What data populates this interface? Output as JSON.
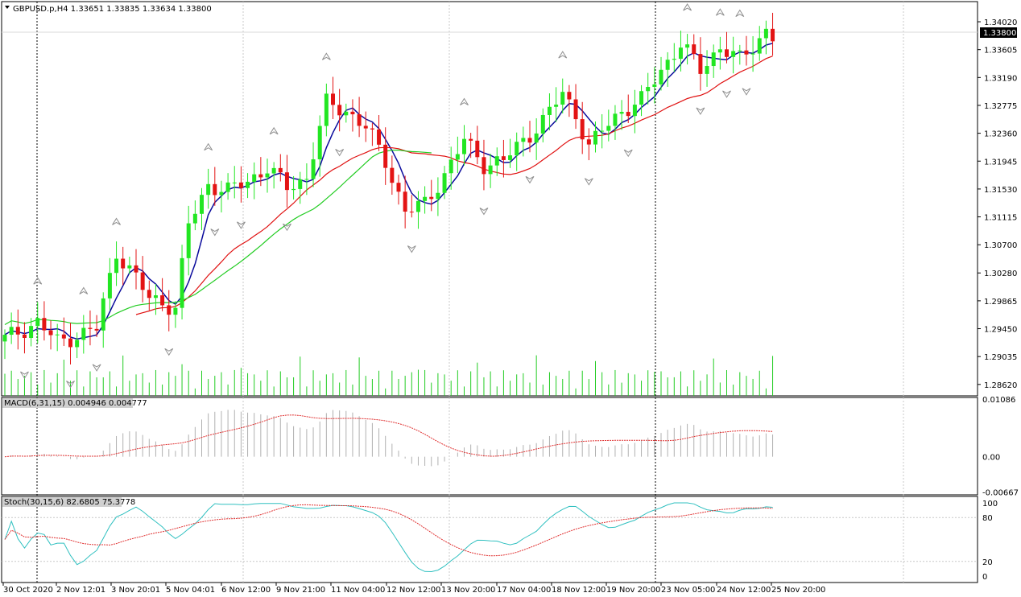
{
  "header": {
    "symbol_line": "GBPUSD.p,H4  1.33651 1.33835 1.33634 1.33800"
  },
  "colors": {
    "bull": "#22e622",
    "bear": "#e31414",
    "ma_fast": "#0a0a9c",
    "ma_slow": "#e01010",
    "ma_green": "#22cc22",
    "volume": "#22cc22",
    "macd_hist": "#b0b0b0",
    "macd_signal": "#e03030",
    "stoch_main": "#30c0c0",
    "stoch_signal": "#e03030",
    "fractal": "#909090",
    "grid": "#c8c8c8"
  },
  "price_panel": {
    "current_price": "1.33800",
    "price_min": 1.2845,
    "price_max": 1.3432,
    "y_labels": [
      "1.34020",
      "1.33605",
      "1.33190",
      "1.32775",
      "1.32360",
      "1.31945",
      "1.31530",
      "1.31115",
      "1.30700",
      "1.30280",
      "1.29865",
      "1.29450",
      "1.29035",
      "1.28620"
    ]
  },
  "macd_panel": {
    "label": "MACD(6,31,15) 0.004946 0.004777",
    "y_labels": [
      "0.01086",
      "0.00",
      "-0.00667"
    ],
    "min": -0.0072,
    "max": 0.0112
  },
  "stoch_panel": {
    "label": "Stoch(30,15,6) 82.6805 75.3778",
    "y_labels": [
      "100",
      "80",
      "20",
      "0"
    ]
  },
  "time_axis": {
    "labels": [
      "30 Oct 2020",
      "2 Nov 12:01",
      "3 Nov 20:01",
      "5 Nov 04:01",
      "6 Nov 12:00",
      "9 Nov 21:00",
      "11 Nov 04:00",
      "12 Nov 12:00",
      "13 Nov 20:00",
      "17 Nov 04:00",
      "18 Nov 12:00",
      "19 Nov 20:00",
      "23 Nov 05:00",
      "24 Nov 12:00",
      "25 Nov 20:00"
    ]
  },
  "chart_data": {
    "type": "candlestick",
    "title": "GBPUSD.p,H4",
    "ylim": [
      1.2845,
      1.3432
    ],
    "waypoints": [
      [
        0,
        1.293
      ],
      [
        5,
        1.2955
      ],
      [
        8,
        1.2925
      ],
      [
        11,
        1.2935
      ],
      [
        14,
        1.2945
      ],
      [
        17,
        1.306
      ],
      [
        20,
        1.302
      ],
      [
        22,
        1.299
      ],
      [
        24,
        1.2985
      ],
      [
        26,
        1.2975
      ],
      [
        28,
        1.31
      ],
      [
        31,
        1.316
      ],
      [
        34,
        1.315
      ],
      [
        37,
        1.3165
      ],
      [
        40,
        1.3185
      ],
      [
        43,
        1.3155
      ],
      [
        46,
        1.317
      ],
      [
        49,
        1.328
      ],
      [
        52,
        1.327
      ],
      [
        55,
        1.3245
      ],
      [
        58,
        1.3195
      ],
      [
        61,
        1.312
      ],
      [
        64,
        1.313
      ],
      [
        67,
        1.3175
      ],
      [
        70,
        1.3225
      ],
      [
        73,
        1.319
      ],
      [
        76,
        1.3195
      ],
      [
        79,
        1.3225
      ],
      [
        82,
        1.3255
      ],
      [
        85,
        1.3295
      ],
      [
        87,
        1.3265
      ],
      [
        89,
        1.3215
      ],
      [
        91,
        1.324
      ],
      [
        94,
        1.327
      ],
      [
        97,
        1.3285
      ],
      [
        100,
        1.333
      ],
      [
        103,
        1.337
      ],
      [
        106,
        1.333
      ],
      [
        109,
        1.3365
      ],
      [
        112,
        1.3345
      ],
      [
        114,
        1.3365
      ],
      [
        116,
        1.339
      ],
      [
        117,
        1.338
      ]
    ],
    "volume_max": 60
  }
}
